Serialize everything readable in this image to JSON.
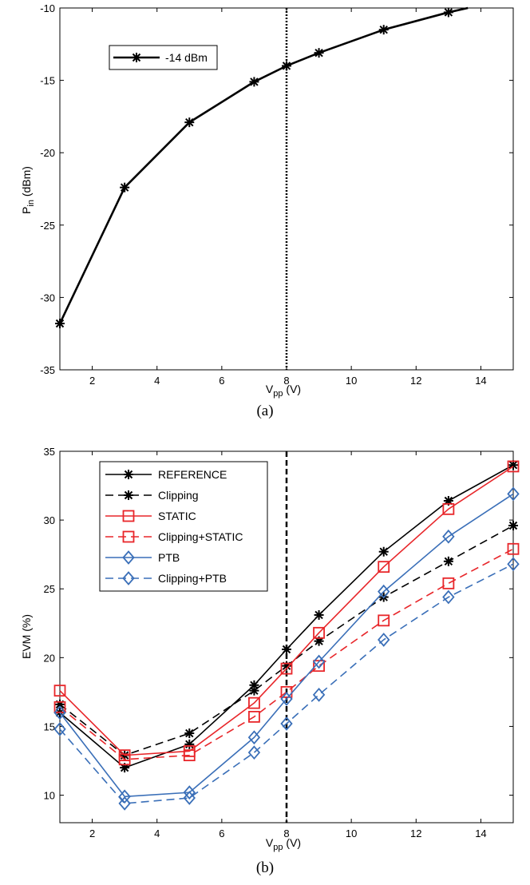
{
  "chart_data": [
    {
      "type": "line",
      "caption": "(a)",
      "ylabel_main": "P",
      "ylabel_sub": "in",
      "ylabel_unit": " (dBm)",
      "xlabel_main": "V",
      "xlabel_sub": "pp",
      "xlabel_unit": " (V)",
      "xlim": [
        1,
        15
      ],
      "ylim": [
        -35,
        -10
      ],
      "xticks": [
        2,
        4,
        6,
        8,
        10,
        12,
        14
      ],
      "yticks": [
        -35,
        -30,
        -25,
        -20,
        -15,
        -10
      ],
      "vline": 8,
      "grid": false,
      "legend_position": "top-left",
      "series": [
        {
          "name": "-14 dBm",
          "color": "#000000",
          "marker": "star",
          "dash": "solid",
          "x": [
            1,
            3,
            5,
            7,
            8,
            9,
            11,
            13,
            13.6
          ],
          "y": [
            -31.8,
            -22.4,
            -17.9,
            -15.1,
            -14.0,
            -13.1,
            -11.5,
            -10.3,
            -10.0
          ],
          "markers": [
            true,
            true,
            true,
            true,
            true,
            true,
            true,
            true,
            false
          ]
        }
      ]
    },
    {
      "type": "line",
      "caption": "(b)",
      "ylabel_main": "EVM (%)",
      "ylabel_sub": "",
      "ylabel_unit": "",
      "xlabel_main": "V",
      "xlabel_sub": "pp",
      "xlabel_unit": " (V)",
      "xlim": [
        1,
        15
      ],
      "ylim": [
        8,
        35
      ],
      "xticks": [
        2,
        4,
        6,
        8,
        10,
        12,
        14
      ],
      "yticks": [
        10,
        15,
        20,
        25,
        30,
        35
      ],
      "vline": 8,
      "grid": false,
      "legend_position": "top-left",
      "series": [
        {
          "name": "REFERENCE",
          "color": "#000000",
          "marker": "star",
          "dash": "solid",
          "x": [
            1,
            3,
            5,
            7,
            8,
            9,
            11,
            13,
            15
          ],
          "y": [
            16.0,
            12.0,
            13.7,
            18.0,
            20.6,
            23.1,
            27.7,
            31.4,
            34.0
          ]
        },
        {
          "name": "Clipping",
          "color": "#000000",
          "marker": "star",
          "dash": "dashed",
          "x": [
            1,
            3,
            5,
            7,
            8,
            9,
            11,
            13,
            15
          ],
          "y": [
            16.6,
            12.9,
            14.5,
            17.6,
            19.4,
            21.2,
            24.4,
            27.0,
            29.6
          ]
        },
        {
          "name": "STATIC",
          "color": "#e8262a",
          "marker": "square",
          "dash": "solid",
          "x": [
            1,
            3,
            5,
            7,
            8,
            9,
            11,
            13,
            15
          ],
          "y": [
            17.6,
            12.9,
            13.2,
            16.7,
            19.2,
            21.8,
            26.6,
            30.8,
            33.9
          ]
        },
        {
          "name": "Clipping+STATIC",
          "color": "#e8262a",
          "marker": "square",
          "dash": "dashed",
          "x": [
            1,
            3,
            5,
            7,
            8,
            9,
            11,
            13,
            15
          ],
          "y": [
            16.4,
            12.6,
            12.9,
            15.7,
            17.5,
            19.4,
            22.7,
            25.4,
            27.9
          ]
        },
        {
          "name": "PTB",
          "color": "#3a6fb8",
          "marker": "diamond",
          "dash": "solid",
          "x": [
            1,
            3,
            5,
            7,
            8,
            9,
            11,
            13,
            15
          ],
          "y": [
            16.0,
            9.9,
            10.2,
            14.2,
            17.0,
            19.7,
            24.8,
            28.8,
            31.9
          ]
        },
        {
          "name": "Clipping+PTB",
          "color": "#3a6fb8",
          "marker": "diamond",
          "dash": "dashed",
          "x": [
            1,
            3,
            5,
            7,
            8,
            9,
            11,
            13,
            15
          ],
          "y": [
            14.8,
            9.4,
            9.8,
            13.1,
            15.2,
            17.3,
            21.3,
            24.4,
            26.8
          ]
        }
      ]
    }
  ]
}
